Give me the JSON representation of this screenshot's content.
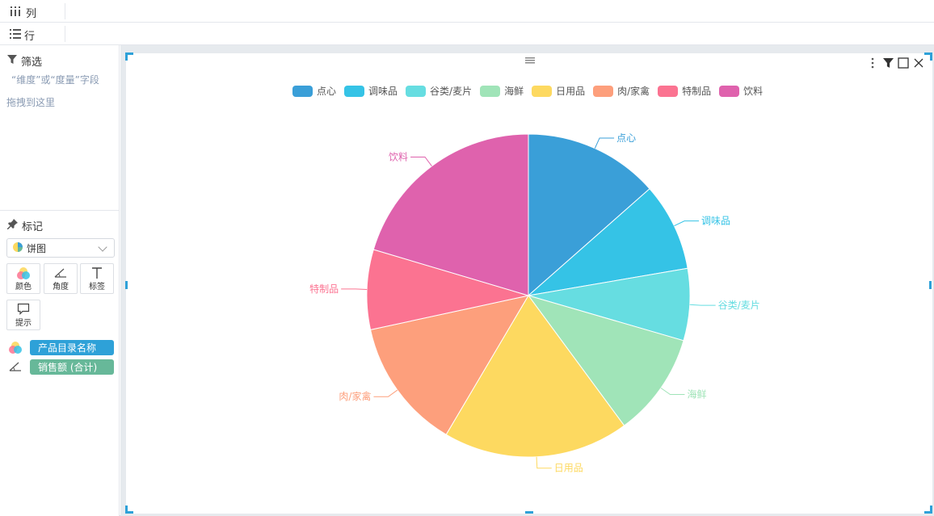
{
  "shelves": {
    "columns_label": "列",
    "rows_label": "行"
  },
  "filter": {
    "title": "筛选",
    "hint_line1": "“维度”或“度量”字段",
    "hint_line2": "拖拽到这里"
  },
  "marks": {
    "title": "标记",
    "chart_type": "饼图",
    "tiles": [
      "颜色",
      "角度",
      "标签",
      "提示"
    ],
    "fields": [
      {
        "name": "产品目录名称",
        "color": "#2ea1d8",
        "icon": "color-dots-icon"
      },
      {
        "name": "销售额 (合计)",
        "color": "#67b899",
        "icon": "angle-icon"
      }
    ]
  },
  "colors": {
    "accent": "#2ea1d8"
  },
  "chart_data": {
    "type": "pie",
    "title": "",
    "legend_position": "top",
    "series": [
      {
        "name": "点心",
        "value": 13.5,
        "color": "#3a9fd8"
      },
      {
        "name": "调味品",
        "value": 8.8,
        "color": "#35c3e6"
      },
      {
        "name": "谷类/麦片",
        "value": 7.2,
        "color": "#66dde1"
      },
      {
        "name": "海鲜",
        "value": 10.4,
        "color": "#a0e4b8"
      },
      {
        "name": "日用品",
        "value": 18.6,
        "color": "#fdd960"
      },
      {
        "name": "肉/家禽",
        "value": 13.1,
        "color": "#fd9f7c"
      },
      {
        "name": "特制品",
        "value": 8.0,
        "color": "#fb7391"
      },
      {
        "name": "饮料",
        "value": 20.4,
        "color": "#df62ad"
      }
    ]
  }
}
